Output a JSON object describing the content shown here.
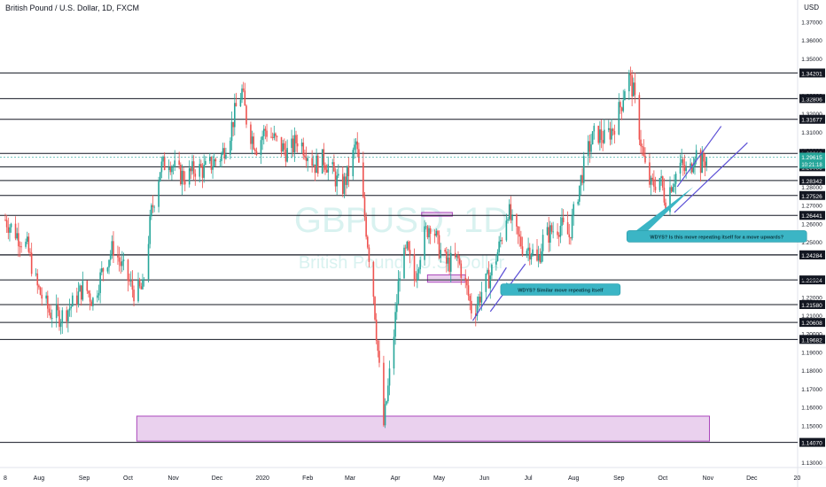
{
  "header": {
    "symbol": "British Pound / U.S. Dollar, 1D, FXCM",
    "currency": "USD"
  },
  "watermark": {
    "ticker": "GBPUSD, 1D",
    "name": "British Pound / U.S. Dollar"
  },
  "colors": {
    "up": "#26a69a",
    "down": "#ef5350",
    "level_line": "#131722",
    "zone_fill": "#e1bee7",
    "zone_stroke": "#ab47bc",
    "channel": "#5b4fd6",
    "callout": "#3bb5c5",
    "last_price": "#26a69a"
  },
  "chart_data": {
    "type": "candlestick",
    "title": "British Pound / U.S. Dollar, 1D, FXCM",
    "ylim": [
      1.127,
      1.376
    ],
    "yticks": [
      1.37,
      1.36,
      1.35,
      1.33,
      1.32,
      1.31,
      1.3,
      1.28,
      1.27,
      1.26,
      1.25,
      1.23,
      1.22,
      1.21,
      1.2,
      1.19,
      1.18,
      1.17,
      1.16,
      1.15,
      1.13
    ],
    "ytick_labels": [
      "1.37000",
      "1.36000",
      "1.35000",
      "1.33000",
      "1.32000",
      "1.31000",
      "1.30000",
      "1.28000",
      "1.27000",
      "1.26000",
      "1.25000",
      "1.23000",
      "1.22000",
      "1.21000",
      "1.20000",
      "1.19000",
      "1.18000",
      "1.17000",
      "1.16000",
      "1.15000",
      "1.13000"
    ],
    "xticks": [
      {
        "label": "8",
        "day": 0
      },
      {
        "label": "Aug",
        "day": 23
      },
      {
        "label": "Sep",
        "day": 54
      },
      {
        "label": "Oct",
        "day": 84
      },
      {
        "label": "Nov",
        "day": 115
      },
      {
        "label": "Dec",
        "day": 145
      },
      {
        "label": "2020",
        "day": 176
      },
      {
        "label": "Feb",
        "day": 207
      },
      {
        "label": "Mar",
        "day": 236
      },
      {
        "label": "Apr",
        "day": 267
      },
      {
        "label": "May",
        "day": 297
      },
      {
        "label": "Jun",
        "day": 328
      },
      {
        "label": "Jul",
        "day": 358
      },
      {
        "label": "Aug",
        "day": 389
      },
      {
        "label": "Sep",
        "day": 420
      },
      {
        "label": "Oct",
        "day": 450
      },
      {
        "label": "Nov",
        "day": 481
      },
      {
        "label": "Dec",
        "day": 511
      },
      {
        "label": "20",
        "day": 542
      }
    ],
    "x_range_days": [
      0,
      546
    ],
    "price_path": [
      {
        "day": 0,
        "price": 1.262
      },
      {
        "day": 8,
        "price": 1.254
      },
      {
        "day": 15,
        "price": 1.247
      },
      {
        "day": 22,
        "price": 1.225
      },
      {
        "day": 30,
        "price": 1.212
      },
      {
        "day": 38,
        "price": 1.209
      },
      {
        "day": 46,
        "price": 1.216
      },
      {
        "day": 54,
        "price": 1.226
      },
      {
        "day": 60,
        "price": 1.218
      },
      {
        "day": 68,
        "price": 1.238
      },
      {
        "day": 74,
        "price": 1.247
      },
      {
        "day": 80,
        "price": 1.236
      },
      {
        "day": 88,
        "price": 1.223
      },
      {
        "day": 94,
        "price": 1.224
      },
      {
        "day": 100,
        "price": 1.266
      },
      {
        "day": 106,
        "price": 1.29
      },
      {
        "day": 112,
        "price": 1.295
      },
      {
        "day": 118,
        "price": 1.287
      },
      {
        "day": 124,
        "price": 1.285
      },
      {
        "day": 130,
        "price": 1.29
      },
      {
        "day": 136,
        "price": 1.289
      },
      {
        "day": 142,
        "price": 1.293
      },
      {
        "day": 148,
        "price": 1.297
      },
      {
        "day": 154,
        "price": 1.31
      },
      {
        "day": 158,
        "price": 1.323
      },
      {
        "day": 162,
        "price": 1.332
      },
      {
        "day": 166,
        "price": 1.312
      },
      {
        "day": 172,
        "price": 1.302
      },
      {
        "day": 178,
        "price": 1.311
      },
      {
        "day": 186,
        "price": 1.304
      },
      {
        "day": 194,
        "price": 1.298
      },
      {
        "day": 200,
        "price": 1.306
      },
      {
        "day": 206,
        "price": 1.3
      },
      {
        "day": 212,
        "price": 1.292
      },
      {
        "day": 218,
        "price": 1.295
      },
      {
        "day": 224,
        "price": 1.288
      },
      {
        "day": 230,
        "price": 1.278
      },
      {
        "day": 236,
        "price": 1.29
      },
      {
        "day": 240,
        "price": 1.304
      },
      {
        "day": 244,
        "price": 1.278
      },
      {
        "day": 248,
        "price": 1.25
      },
      {
        "day": 252,
        "price": 1.222
      },
      {
        "day": 256,
        "price": 1.18
      },
      {
        "day": 259,
        "price": 1.15
      },
      {
        "day": 262,
        "price": 1.17
      },
      {
        "day": 266,
        "price": 1.2
      },
      {
        "day": 270,
        "price": 1.235
      },
      {
        "day": 275,
        "price": 1.245
      },
      {
        "day": 280,
        "price": 1.23
      },
      {
        "day": 286,
        "price": 1.252
      },
      {
        "day": 292,
        "price": 1.262
      },
      {
        "day": 296,
        "price": 1.248
      },
      {
        "day": 302,
        "price": 1.238
      },
      {
        "day": 310,
        "price": 1.24
      },
      {
        "day": 316,
        "price": 1.224
      },
      {
        "day": 320,
        "price": 1.21
      },
      {
        "day": 326,
        "price": 1.223
      },
      {
        "day": 332,
        "price": 1.232
      },
      {
        "day": 338,
        "price": 1.247
      },
      {
        "day": 344,
        "price": 1.268
      },
      {
        "day": 348,
        "price": 1.256
      },
      {
        "day": 354,
        "price": 1.248
      },
      {
        "day": 360,
        "price": 1.246
      },
      {
        "day": 364,
        "price": 1.238
      },
      {
        "day": 368,
        "price": 1.251
      },
      {
        "day": 374,
        "price": 1.256
      },
      {
        "day": 380,
        "price": 1.259
      },
      {
        "day": 386,
        "price": 1.253
      },
      {
        "day": 392,
        "price": 1.277
      },
      {
        "day": 398,
        "price": 1.298
      },
      {
        "day": 404,
        "price": 1.31
      },
      {
        "day": 410,
        "price": 1.306
      },
      {
        "day": 416,
        "price": 1.312
      },
      {
        "day": 422,
        "price": 1.326
      },
      {
        "day": 426,
        "price": 1.343
      },
      {
        "day": 430,
        "price": 1.331
      },
      {
        "day": 434,
        "price": 1.31
      },
      {
        "day": 438,
        "price": 1.29
      },
      {
        "day": 442,
        "price": 1.28
      },
      {
        "day": 448,
        "price": 1.285
      },
      {
        "day": 452,
        "price": 1.272
      },
      {
        "day": 456,
        "price": 1.282
      },
      {
        "day": 462,
        "price": 1.292
      },
      {
        "day": 468,
        "price": 1.286
      },
      {
        "day": 472,
        "price": 1.3
      },
      {
        "day": 476,
        "price": 1.292
      },
      {
        "day": 480,
        "price": 1.296
      }
    ],
    "horizontal_levels": [
      "1.34201",
      "1.32806",
      "1.31677",
      "1.29819",
      "1.29088",
      "1.28342",
      "1.27526",
      "1.26441",
      "1.24291",
      "1.24284",
      "1.22924",
      "1.21580",
      "1.20608",
      "1.19682",
      "1.14070"
    ],
    "last_price": {
      "price": "1.29615",
      "countdown": "10:21:18"
    },
    "zones": [
      {
        "name": "march-low-zone",
        "x0_day": 90,
        "x1_day": 482,
        "y0": 1.1414,
        "y1": 1.155
      },
      {
        "name": "april-top-zone",
        "x0_day": 285,
        "x1_day": 306,
        "y0": 1.264,
        "y1": 1.266
      },
      {
        "name": "may-mid-zone",
        "x0_day": 289,
        "x1_day": 315,
        "y0": 1.228,
        "y1": 1.232
      }
    ],
    "channels": [
      {
        "name": "may-channel",
        "lines": [
          [
            320,
            1.207,
            343,
            1.236
          ],
          [
            332,
            1.212,
            356,
            1.238
          ]
        ]
      },
      {
        "name": "oct-channel",
        "lines": [
          [
            460,
            1.28,
            490,
            1.313
          ],
          [
            458,
            1.266,
            508,
            1.304
          ]
        ]
      }
    ],
    "annotations": [
      {
        "name": "may-callout",
        "text": "WDYS? Similar move repeating itself",
        "day": 380,
        "price": 1.224,
        "tip_day": 343,
        "tip_price": 1.228
      },
      {
        "name": "oct-callout",
        "text": "WDYS? Is this move repeating itself for a move upwards?",
        "day": 487,
        "price": 1.253,
        "tip_day": 471,
        "tip_price": 1.28
      }
    ]
  }
}
